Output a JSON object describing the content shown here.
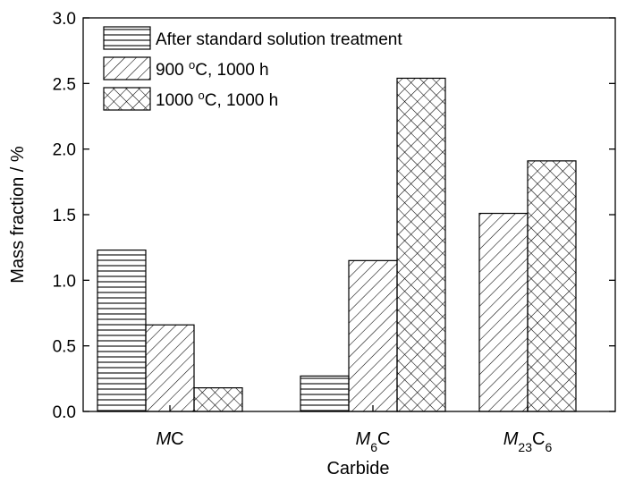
{
  "chart_data": {
    "type": "bar",
    "categories": [
      "MC",
      "M6C",
      "M23C6"
    ],
    "category_labels": [
      {
        "base": "M",
        "sub": "",
        "rest": "C",
        "sub2": ""
      },
      {
        "base": "M",
        "sub": "6",
        "rest": "C",
        "sub2": ""
      },
      {
        "base": "M",
        "sub": "23",
        "rest": "C",
        "sub2": "6"
      }
    ],
    "series": [
      {
        "name": "After standard solution treatment",
        "pattern": "horizontal-lines",
        "values": [
          1.23,
          0.27,
          null
        ]
      },
      {
        "name": "900 °C, 1000 h",
        "pattern": "diagonal-lines",
        "values": [
          0.66,
          1.15,
          1.51
        ]
      },
      {
        "name": "1000 °C, 1000 h",
        "pattern": "crosshatch",
        "values": [
          0.18,
          2.54,
          1.91
        ]
      }
    ],
    "legend_names": [
      {
        "pre": "After standard solution treatment",
        "sup": "",
        "post": ""
      },
      {
        "pre": "900 ",
        "sup": "o",
        "post": "C, 1000 h"
      },
      {
        "pre": "1000 ",
        "sup": "o",
        "post": "C, 1000 h"
      }
    ],
    "xlabel": "Carbide",
    "ylabel": "Mass fraction / %",
    "ylim": [
      0,
      3.0
    ],
    "yticks": [
      0.0,
      0.5,
      1.0,
      1.5,
      2.0,
      2.5,
      3.0
    ],
    "ytick_labels": [
      "0.0",
      "0.5",
      "1.0",
      "1.5",
      "2.0",
      "2.5",
      "3.0"
    ],
    "legend_position": "top-left",
    "grid": false
  }
}
